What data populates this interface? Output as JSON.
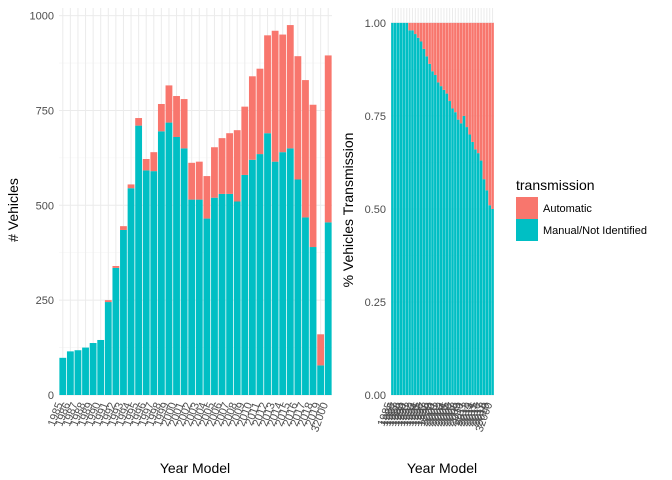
{
  "chart_data": [
    {
      "type": "bar",
      "stacked": true,
      "title": "",
      "xlabel": "Year Model",
      "ylabel": "# Vehicles",
      "ylim": [
        0,
        1020
      ],
      "yticks": [
        0,
        250,
        500,
        750,
        1000
      ],
      "grid": true,
      "categories": [
        "1985",
        "1986",
        "1987",
        "1988",
        "1989",
        "1990",
        "1991",
        "1992",
        "1993",
        "1994",
        "1995",
        "1996",
        "1997",
        "1998",
        "1999",
        "2000",
        "2001",
        "2002",
        "2003",
        "2004",
        "2005",
        "2006",
        "2007",
        "2008",
        "2009",
        "2010",
        "2011",
        "2012",
        "2013",
        "2014",
        "2015",
        "2016",
        "2017",
        "2018",
        "2019",
        "32000"
      ],
      "series": [
        {
          "name": "Manual/Not Identified",
          "color": "#00BFC4",
          "values": [
            98,
            115,
            118,
            125,
            137,
            145,
            245,
            335,
            435,
            545,
            710,
            592,
            590,
            695,
            718,
            680,
            650,
            515,
            515,
            465,
            520,
            530,
            530,
            510,
            580,
            620,
            635,
            690,
            615,
            640,
            650,
            568,
            468,
            390,
            78,
            455
          ]
        },
        {
          "name": "Automatic",
          "color": "#F8766D",
          "values": [
            0,
            0,
            0,
            0,
            0,
            0,
            5,
            5,
            10,
            10,
            20,
            30,
            50,
            72,
            98,
            108,
            130,
            97,
            100,
            112,
            133,
            147,
            160,
            188,
            180,
            220,
            225,
            258,
            345,
            310,
            325,
            325,
            362,
            375,
            82,
            440
          ]
        }
      ]
    },
    {
      "type": "bar",
      "stacked": true,
      "title": "",
      "xlabel": "Year Model",
      "ylabel": "% Vehicles Transmission",
      "ylim": [
        0,
        1.04
      ],
      "yticks": [
        0.0,
        0.25,
        0.5,
        0.75,
        1.0
      ],
      "ytick_labels": [
        "0.00",
        "0.25",
        "0.50",
        "0.75",
        "1.00"
      ],
      "grid": true,
      "categories": [
        "1985",
        "1986",
        "1987",
        "1988",
        "1989",
        "1990",
        "1991",
        "1992",
        "1993",
        "1994",
        "1995",
        "1996",
        "1997",
        "1998",
        "1999",
        "2000",
        "2001",
        "2002",
        "2003",
        "2004",
        "2005",
        "2006",
        "2007",
        "2008",
        "2009",
        "2010",
        "2011",
        "2012",
        "2013",
        "2014",
        "2015",
        "2016",
        "2017",
        "2018",
        "2019",
        "32000"
      ],
      "series": [
        {
          "name": "Manual/Not Identified",
          "color": "#00BFC4",
          "values": [
            1.0,
            1.0,
            1.0,
            1.0,
            1.0,
            1.0,
            0.98,
            0.98,
            0.97,
            0.96,
            0.95,
            0.93,
            0.91,
            0.89,
            0.87,
            0.86,
            0.84,
            0.83,
            0.82,
            0.81,
            0.79,
            0.77,
            0.76,
            0.74,
            0.73,
            0.75,
            0.72,
            0.7,
            0.68,
            0.66,
            0.65,
            0.63,
            0.58,
            0.55,
            0.51,
            0.5
          ]
        },
        {
          "name": "Automatic",
          "color": "#F8766D",
          "values": [
            0.0,
            0.0,
            0.0,
            0.0,
            0.0,
            0.0,
            0.02,
            0.02,
            0.03,
            0.04,
            0.05,
            0.07,
            0.09,
            0.11,
            0.13,
            0.14,
            0.16,
            0.17,
            0.18,
            0.19,
            0.21,
            0.23,
            0.24,
            0.26,
            0.27,
            0.25,
            0.28,
            0.3,
            0.32,
            0.34,
            0.35,
            0.37,
            0.42,
            0.45,
            0.49,
            0.5
          ]
        }
      ]
    }
  ],
  "legend": {
    "title": "transmission",
    "position": "right",
    "items": [
      {
        "label": "Automatic",
        "color": "#F8766D"
      },
      {
        "label": "Manual/Not Identified",
        "color": "#00BFC4"
      }
    ]
  }
}
